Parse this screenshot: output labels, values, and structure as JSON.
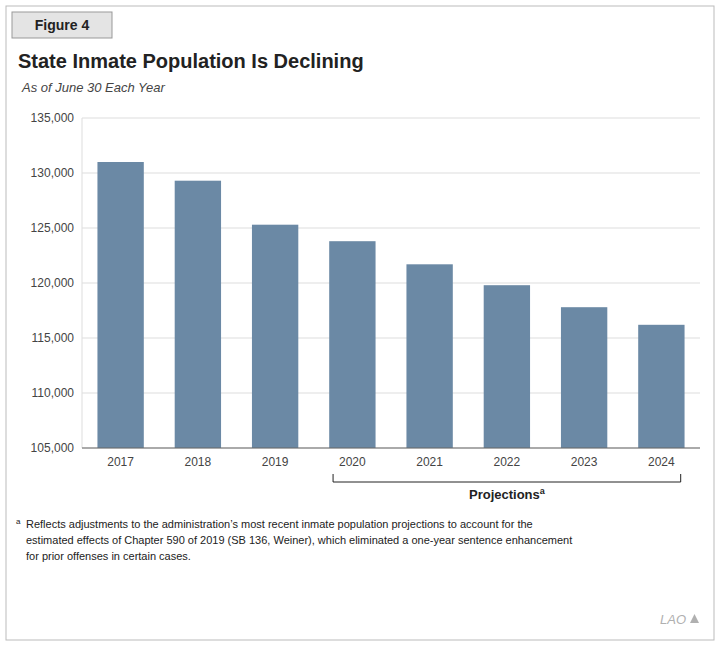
{
  "chart_data": {
    "type": "bar",
    "title": "State Inmate Population Is Declining",
    "subtitle": "As of June 30 Each Year",
    "categories": [
      "2017",
      "2018",
      "2019",
      "2020",
      "2021",
      "2022",
      "2023",
      "2024"
    ],
    "values": [
      131000,
      129300,
      125300,
      123800,
      121700,
      119800,
      117800,
      116200
    ],
    "color": "#6b89a5",
    "ylim": [
      105000,
      135000
    ],
    "yticks": [
      {
        "value": 105000,
        "label": "105,000"
      },
      {
        "value": 110000,
        "label": "110,000"
      },
      {
        "value": 115000,
        "label": "115,000"
      },
      {
        "value": 120000,
        "label": "120,000"
      },
      {
        "value": 125000,
        "label": "125,000"
      },
      {
        "value": 130000,
        "label": "130,000"
      },
      {
        "value": 135000,
        "label": "135,000"
      }
    ],
    "grid": true,
    "annotations": [
      {
        "text": "Figure 4"
      },
      {
        "text": "Projections",
        "note": "a",
        "from": "2020",
        "to": "2024"
      },
      {
        "text": "Reflects adjustments to the administration’s most recent inmate population projections to account for the\nestimated effects of Chapter 590 of 2019 (SB 136, Weiner), which eliminated a one-year sentence enhancement\nfor prior offenses in certain cases.",
        "note": "a"
      },
      {
        "text": "LAO"
      }
    ]
  }
}
